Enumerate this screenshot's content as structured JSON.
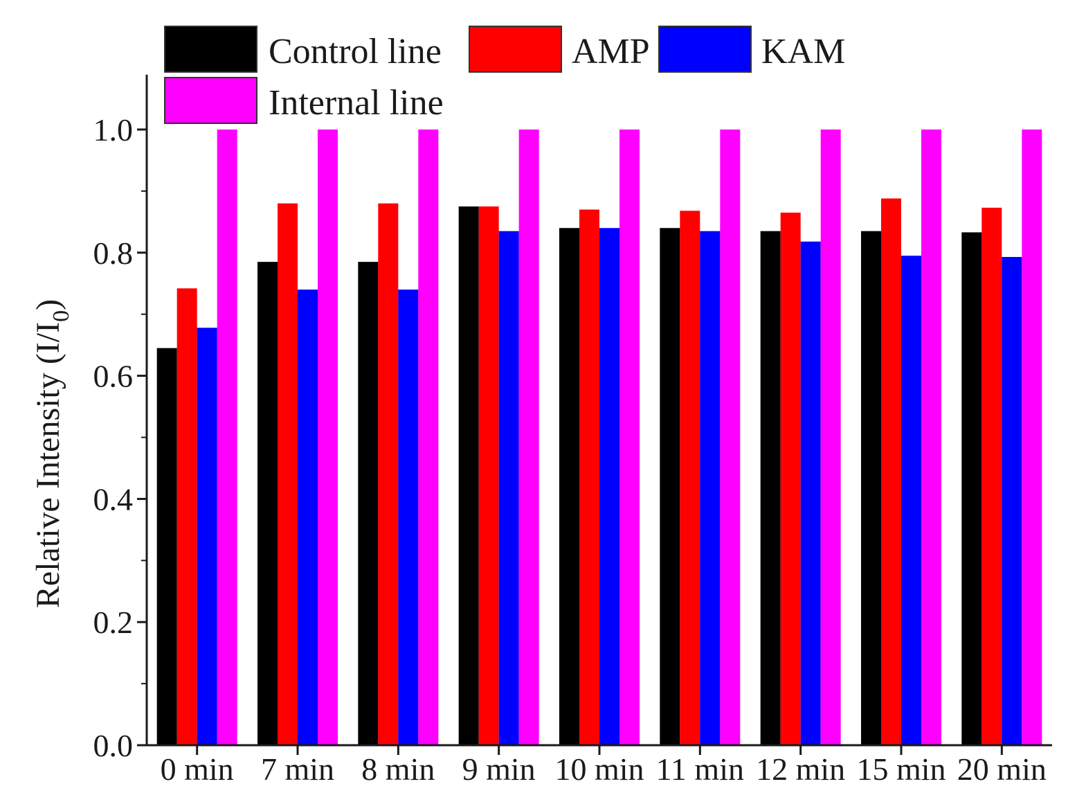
{
  "chart_data": {
    "type": "bar",
    "title": "",
    "xlabel": "",
    "ylabel": "Relative Intensity (I/I",
    "ylabel_subscript": "0",
    "ylabel_close": ")",
    "ylim": [
      0,
      1.08
    ],
    "yticks": [
      0.0,
      0.2,
      0.4,
      0.6,
      0.8,
      1.0
    ],
    "ytick_labels": [
      "0.0",
      "0.2",
      "0.4",
      "0.6",
      "0.8",
      "1.0"
    ],
    "grid": false,
    "legend_position": "top-left",
    "categories": [
      "0 min",
      "7 min",
      "8 min",
      "9 min",
      "10 min",
      "11 min",
      "12 min",
      "15 min",
      "20 min"
    ],
    "series": [
      {
        "name": "Control line",
        "color": "#000000",
        "values": [
          0.645,
          0.785,
          0.785,
          0.875,
          0.84,
          0.84,
          0.835,
          0.835,
          0.833
        ]
      },
      {
        "name": "AMP",
        "color": "#ff0000",
        "values": [
          0.742,
          0.88,
          0.88,
          0.875,
          0.87,
          0.868,
          0.865,
          0.888,
          0.873
        ]
      },
      {
        "name": "KAM",
        "color": "#0000ff",
        "values": [
          0.678,
          0.74,
          0.74,
          0.835,
          0.84,
          0.835,
          0.818,
          0.795,
          0.793
        ]
      },
      {
        "name": "Internal line",
        "color": "#ff00ff",
        "values": [
          1.0,
          1.0,
          1.0,
          1.0,
          1.0,
          1.0,
          1.0,
          1.0,
          1.0
        ]
      }
    ]
  }
}
